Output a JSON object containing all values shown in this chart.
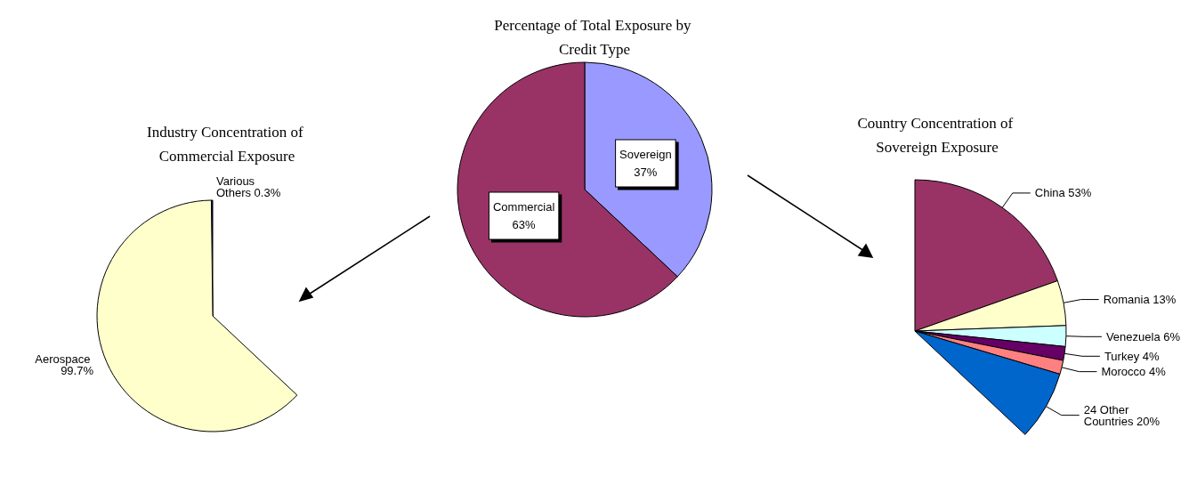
{
  "chart_data": [
    {
      "type": "pie",
      "title": "Industry Concentration of Commercial Exposure",
      "categories": [
        "Various Others",
        "Aerospace"
      ],
      "values": [
        0.3,
        99.7
      ],
      "value_labels": [
        "0.3%",
        "99.7%"
      ],
      "colors": [
        "#000080",
        "#ffffcc"
      ],
      "legend": false
    },
    {
      "type": "pie",
      "title": "Percentage of Total Exposure by Credit Type",
      "categories": [
        "Sovereign",
        "Commercial"
      ],
      "values": [
        37,
        63
      ],
      "value_labels": [
        "37%",
        "63%"
      ],
      "colors": [
        "#9999ff",
        "#993366"
      ],
      "legend": false
    },
    {
      "type": "pie",
      "title": "Country Concentration of Sovereign Exposure",
      "categories": [
        "China",
        "Romania",
        "Venezuela",
        "Turkey",
        "Morocco",
        "24 Other Countries"
      ],
      "values": [
        53,
        13,
        6,
        4,
        4,
        20
      ],
      "value_labels": [
        "53%",
        "13%",
        "6%",
        "4%",
        "4%",
        "20%"
      ],
      "colors": [
        "#993366",
        "#ffffcc",
        "#ccffff",
        "#660066",
        "#ff8080",
        "#0066cc"
      ],
      "legend": false
    }
  ]
}
